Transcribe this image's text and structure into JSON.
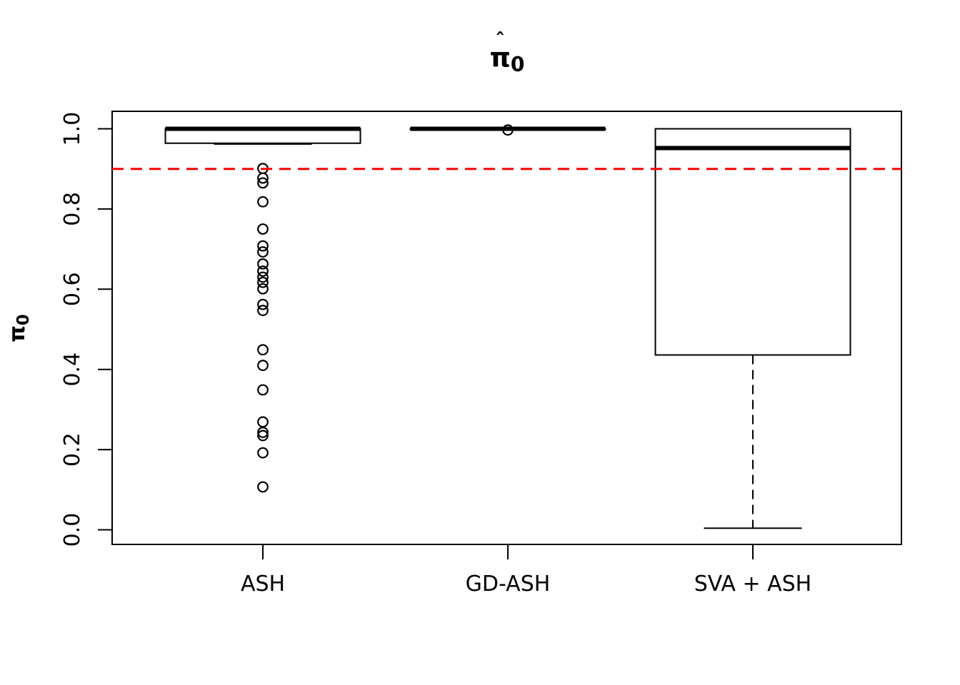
{
  "title": {
    "hat": "ˆ",
    "symbol": "π",
    "subscript": "0"
  },
  "y_axis": {
    "label": {
      "hat": "ˆ",
      "symbol": "π",
      "subscript": "0"
    },
    "tick_labels": [
      "0.0",
      "0.2",
      "0.4",
      "0.6",
      "0.8",
      "1.0"
    ]
  },
  "x_axis": {
    "categories": [
      "ASH",
      "GD-ASH",
      "SVA + ASH"
    ]
  },
  "chart_data": {
    "type": "boxplot",
    "title": "π̂₀",
    "ylabel": "π̂₀",
    "xlabel": "",
    "categories": [
      "ASH",
      "GD-ASH",
      "SVA + ASH"
    ],
    "y_ticks": [
      0.0,
      0.2,
      0.4,
      0.6,
      0.8,
      1.0
    ],
    "y_tick_labels": [
      "0.0",
      "0.2",
      "0.4",
      "0.6",
      "0.8",
      "1.0"
    ],
    "ylim": [
      -0.04,
      1.04
    ],
    "grid": false,
    "legend": "none",
    "series": [
      {
        "name": "ASH",
        "median": 1.0,
        "q1": 0.964,
        "q3": 1.0,
        "whisker_low": 0.962,
        "whisker_high": 1.0,
        "outliers": [
          0.901,
          0.877,
          0.865,
          0.818,
          0.75,
          0.708,
          0.693,
          0.663,
          0.645,
          0.63,
          0.617,
          0.601,
          0.562,
          0.547,
          0.449,
          0.41,
          0.349,
          0.269,
          0.243,
          0.235,
          0.192,
          0.107
        ]
      },
      {
        "name": "GD-ASH",
        "median": 1.0,
        "q1": 0.999,
        "q3": 1.0,
        "whisker_low": 0.998,
        "whisker_high": 1.0,
        "outliers": [
          0.997
        ]
      },
      {
        "name": "SVA + ASH",
        "median": 0.952,
        "q1": 0.436,
        "q3": 1.0,
        "whisker_low": 0.004,
        "whisker_high": 1.0,
        "outliers": []
      }
    ],
    "reference_line": {
      "y": 0.9,
      "color": "#FF0000",
      "style": "dashed"
    },
    "line_color": "#000000",
    "box_fill": "#FFFFFF"
  }
}
